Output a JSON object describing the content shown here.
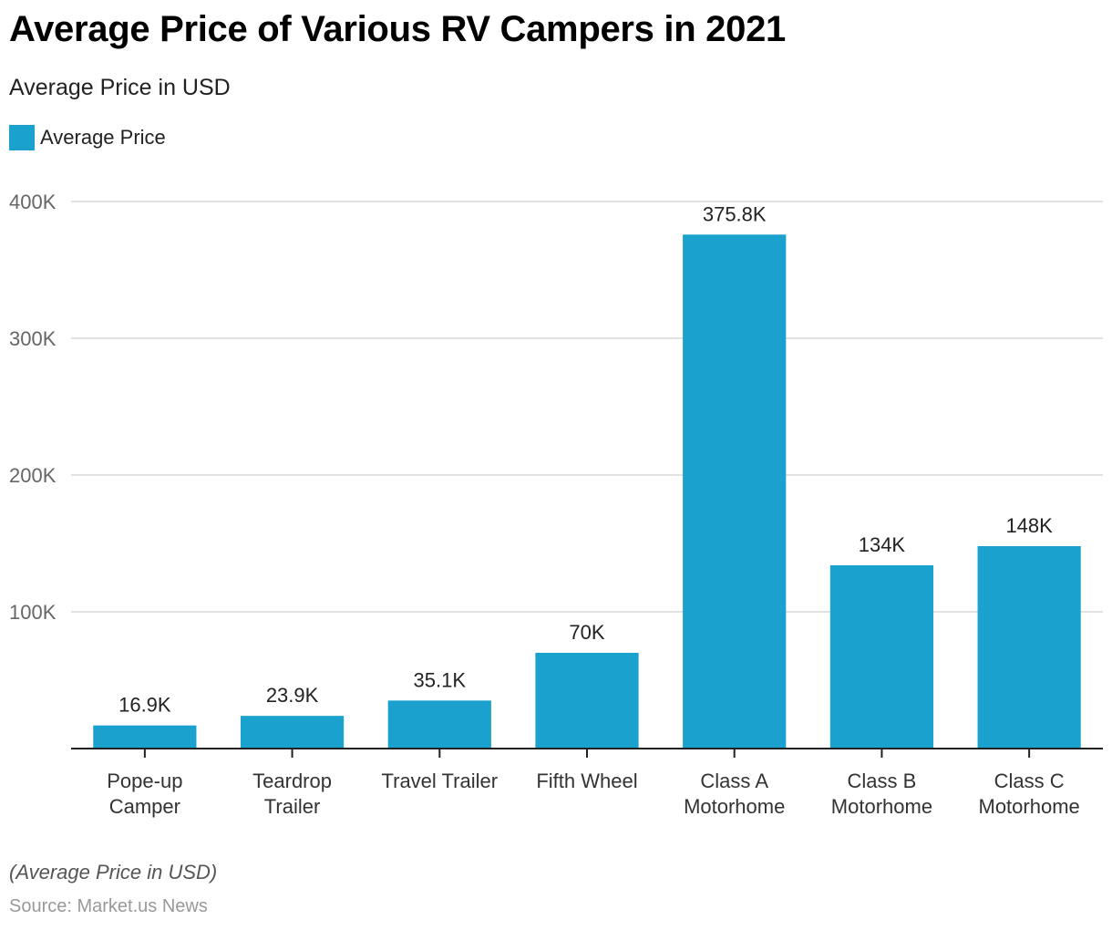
{
  "chart_data": {
    "type": "bar",
    "title": "Average Price of Various RV Campers in 2021",
    "subtitle": "Average Price in USD",
    "legend": [
      {
        "name": "Average Price",
        "color": "#1ba1cd"
      }
    ],
    "legend_position": "top-left",
    "categories": [
      [
        "Pope-up",
        "Camper"
      ],
      [
        "Teardrop",
        "Trailer"
      ],
      [
        "Travel Trailer"
      ],
      [
        "Fifth Wheel"
      ],
      [
        "Class A",
        "Motorhome"
      ],
      [
        "Class B",
        "Motorhome"
      ],
      [
        "Class C",
        "Motorhome"
      ]
    ],
    "series": [
      {
        "name": "Average Price",
        "color": "#1ba1cd",
        "values": [
          16900,
          23900,
          35100,
          70000,
          375800,
          134000,
          148000
        ],
        "labels": [
          "16.9K",
          "23.9K",
          "35.1K",
          "70K",
          "375.8K",
          "134K",
          "148K"
        ]
      }
    ],
    "xlabel": "",
    "ylabel": "",
    "ylim": [
      0,
      400000
    ],
    "yticks": [
      100000,
      200000,
      300000,
      400000
    ],
    "ytick_labels": [
      "100K",
      "200K",
      "300K",
      "400K"
    ],
    "grid": true
  },
  "footer": {
    "note": "(Average Price in USD)",
    "source": "Source: Market.us News"
  }
}
